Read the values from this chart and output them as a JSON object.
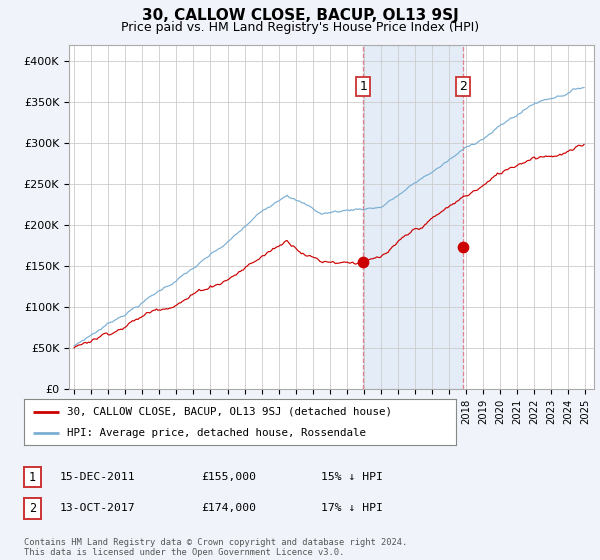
{
  "title": "30, CALLOW CLOSE, BACUP, OL13 9SJ",
  "subtitle": "Price paid vs. HM Land Registry's House Price Index (HPI)",
  "ylabel_ticks": [
    "£0",
    "£50K",
    "£100K",
    "£150K",
    "£200K",
    "£250K",
    "£300K",
    "£350K",
    "£400K"
  ],
  "ytick_values": [
    0,
    50000,
    100000,
    150000,
    200000,
    250000,
    300000,
    350000,
    400000
  ],
  "ylim": [
    0,
    420000
  ],
  "xlim_start": 1994.7,
  "xlim_end": 2025.5,
  "hpi_color": "#7bafd4",
  "price_color": "#cc0000",
  "t1_x": 2011.96,
  "t1_y": 155000,
  "t2_x": 2017.79,
  "t2_y": 174000,
  "shade_x1": 2011.96,
  "shade_x2": 2017.79,
  "legend_line1": "30, CALLOW CLOSE, BACUP, OL13 9SJ (detached house)",
  "legend_line2": "HPI: Average price, detached house, Rossendale",
  "footer": "Contains HM Land Registry data © Crown copyright and database right 2024.\nThis data is licensed under the Open Government Licence v3.0.",
  "background_color": "#f0f4fa",
  "plot_bg_color": "#ffffff",
  "grid_color": "#cccccc",
  "title_fontsize": 11,
  "subtitle_fontsize": 9,
  "tick_fontsize": 8
}
